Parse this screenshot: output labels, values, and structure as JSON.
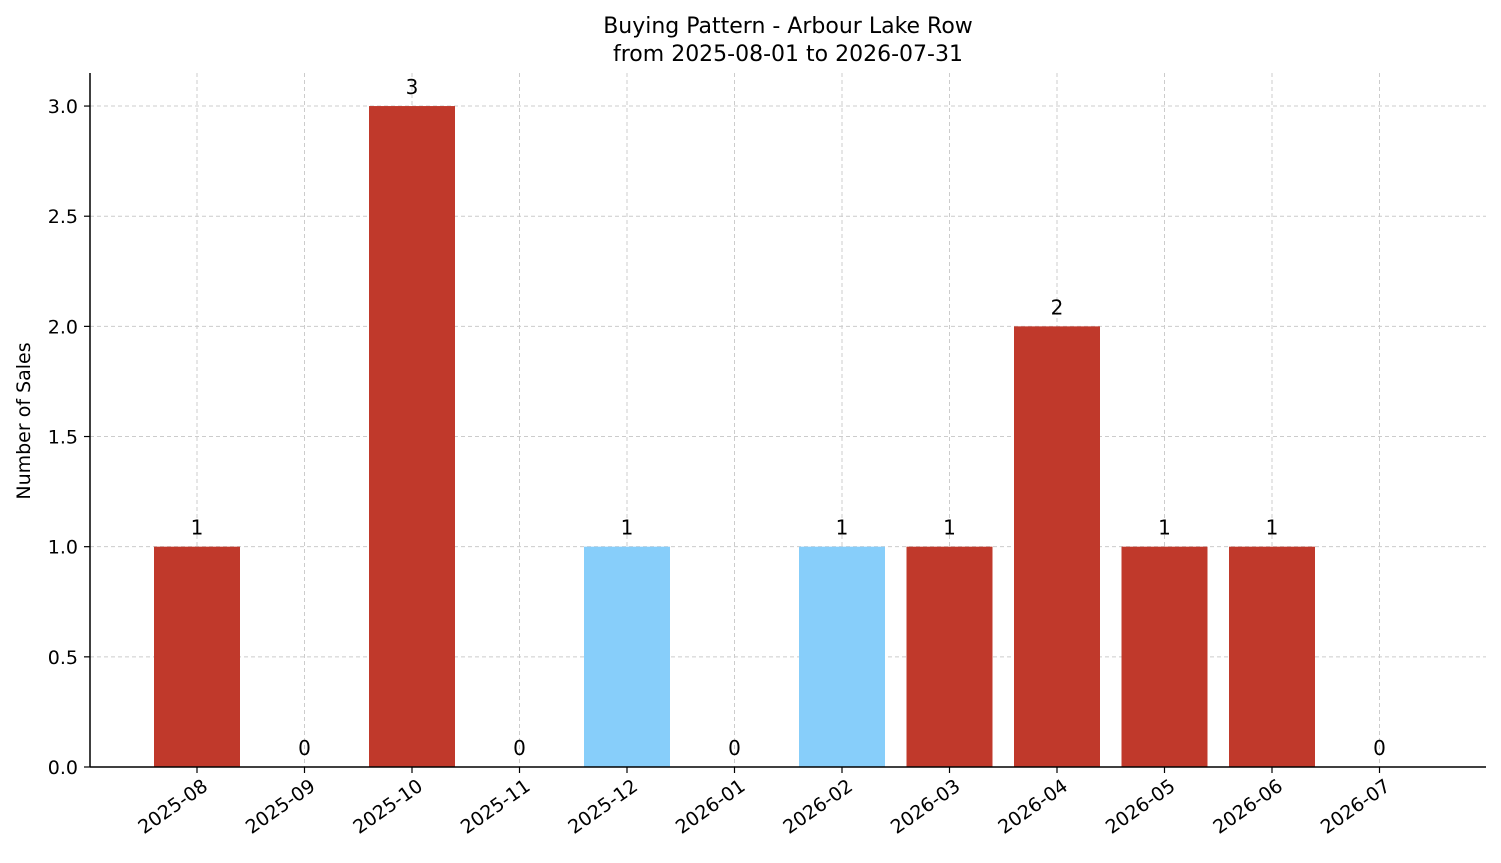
{
  "chart_data": {
    "type": "bar",
    "title": "Buying Pattern - Arbour Lake Row",
    "subtitle": "from 2025-08-01 to 2026-07-31",
    "xlabel": "",
    "ylabel": "Number of Sales",
    "categories": [
      "2025-08",
      "2025-09",
      "2025-10",
      "2025-11",
      "2025-12",
      "2026-01",
      "2026-02",
      "2026-03",
      "2026-04",
      "2026-05",
      "2026-06",
      "2026-07"
    ],
    "values": [
      1,
      0,
      3,
      0,
      1,
      0,
      1,
      1,
      2,
      1,
      1,
      0
    ],
    "bar_colors": [
      "#c0392b",
      "#c0392b",
      "#c0392b",
      "#c0392b",
      "#87cefa",
      "#c0392b",
      "#87cefa",
      "#c0392b",
      "#c0392b",
      "#c0392b",
      "#c0392b",
      "#c0392b"
    ],
    "data_labels": [
      "1",
      "0",
      "3",
      "0",
      "1",
      "0",
      "1",
      "1",
      "2",
      "1",
      "1",
      "0"
    ],
    "yticks": [
      "0.0",
      "0.5",
      "1.0",
      "1.5",
      "2.0",
      "2.5",
      "3.0"
    ],
    "ylim": [
      0,
      3.15
    ],
    "grid": true,
    "legend": "none"
  }
}
